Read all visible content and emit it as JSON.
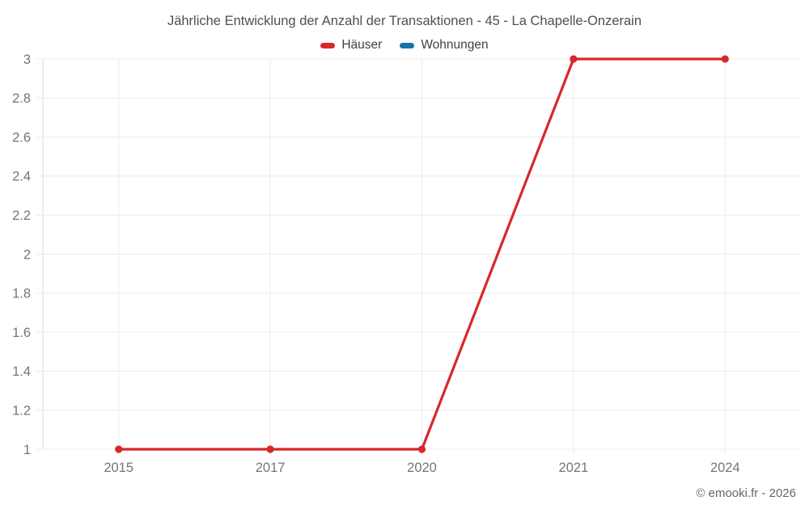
{
  "title": "Jährliche Entwicklung der Anzahl der Transaktionen - 45 - La Chapelle-Onzerain",
  "legend": {
    "items": [
      {
        "label": "Häuser",
        "color": "#d7282c"
      },
      {
        "label": "Wohnungen",
        "color": "#1673a8"
      }
    ]
  },
  "footer": {
    "copyright": "© emooki.fr - 2026"
  },
  "chart_data": {
    "type": "line",
    "title": "Jährliche Entwicklung der Anzahl der Transaktionen - 45 - La Chapelle-Onzerain",
    "categories": [
      "2015",
      "2017",
      "2020",
      "2021",
      "2024"
    ],
    "series": [
      {
        "name": "Häuser",
        "color": "#d7282c",
        "values": [
          1,
          1,
          1,
          3,
          3
        ]
      },
      {
        "name": "Wohnungen",
        "color": "#1673a8",
        "values": []
      }
    ],
    "ylim": [
      1,
      3
    ],
    "ytick_step": 0.2,
    "yticks": [
      1,
      1.2,
      1.4,
      1.6,
      1.8,
      2,
      2.2,
      2.4,
      2.6,
      2.8,
      3
    ],
    "xlabel": "",
    "ylabel": "",
    "grid": true,
    "legend_position": "top",
    "colors": {
      "grid_line": "#ececec",
      "axis_line": "#d9d9d9",
      "tick_label": "#757575"
    }
  }
}
